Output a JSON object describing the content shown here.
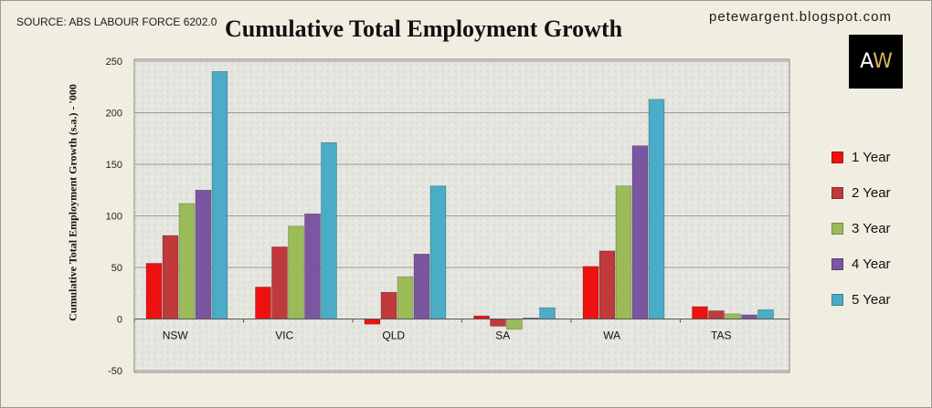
{
  "header": {
    "source": "SOURCE: ABS LABOUR FORCE 6202.0",
    "title": "Cumulative Total Employment Growth",
    "blog": "petewargent.blogspot.com",
    "logo_a": "A",
    "logo_w": "W"
  },
  "chart_data": {
    "type": "bar",
    "title": "Cumulative Total Employment Growth",
    "ylabel": "Cumulative Total Employment Growth (s.a.) - '000",
    "xlabel": "",
    "ylim": [
      -50,
      250
    ],
    "yticks": [
      -50,
      0,
      50,
      100,
      150,
      200,
      250
    ],
    "grid": true,
    "legend_position": "right",
    "categories": [
      "NSW",
      "VIC",
      "QLD",
      "SA",
      "WA",
      "TAS"
    ],
    "series": [
      {
        "name": "1 Year",
        "color": "#ee1111",
        "values": [
          54,
          31,
          -5,
          3,
          51,
          12
        ]
      },
      {
        "name": "2 Year",
        "color": "#c0393b",
        "values": [
          81,
          70,
          26,
          -7,
          66,
          8
        ]
      },
      {
        "name": "3 Year",
        "color": "#9bbb59",
        "values": [
          112,
          90,
          41,
          -10,
          129,
          5
        ]
      },
      {
        "name": "4 Year",
        "color": "#7b56a0",
        "values": [
          125,
          102,
          63,
          1,
          168,
          4
        ]
      },
      {
        "name": "5 Year",
        "color": "#4aacc6",
        "values": [
          240,
          171,
          129,
          11,
          213,
          9
        ]
      }
    ]
  }
}
